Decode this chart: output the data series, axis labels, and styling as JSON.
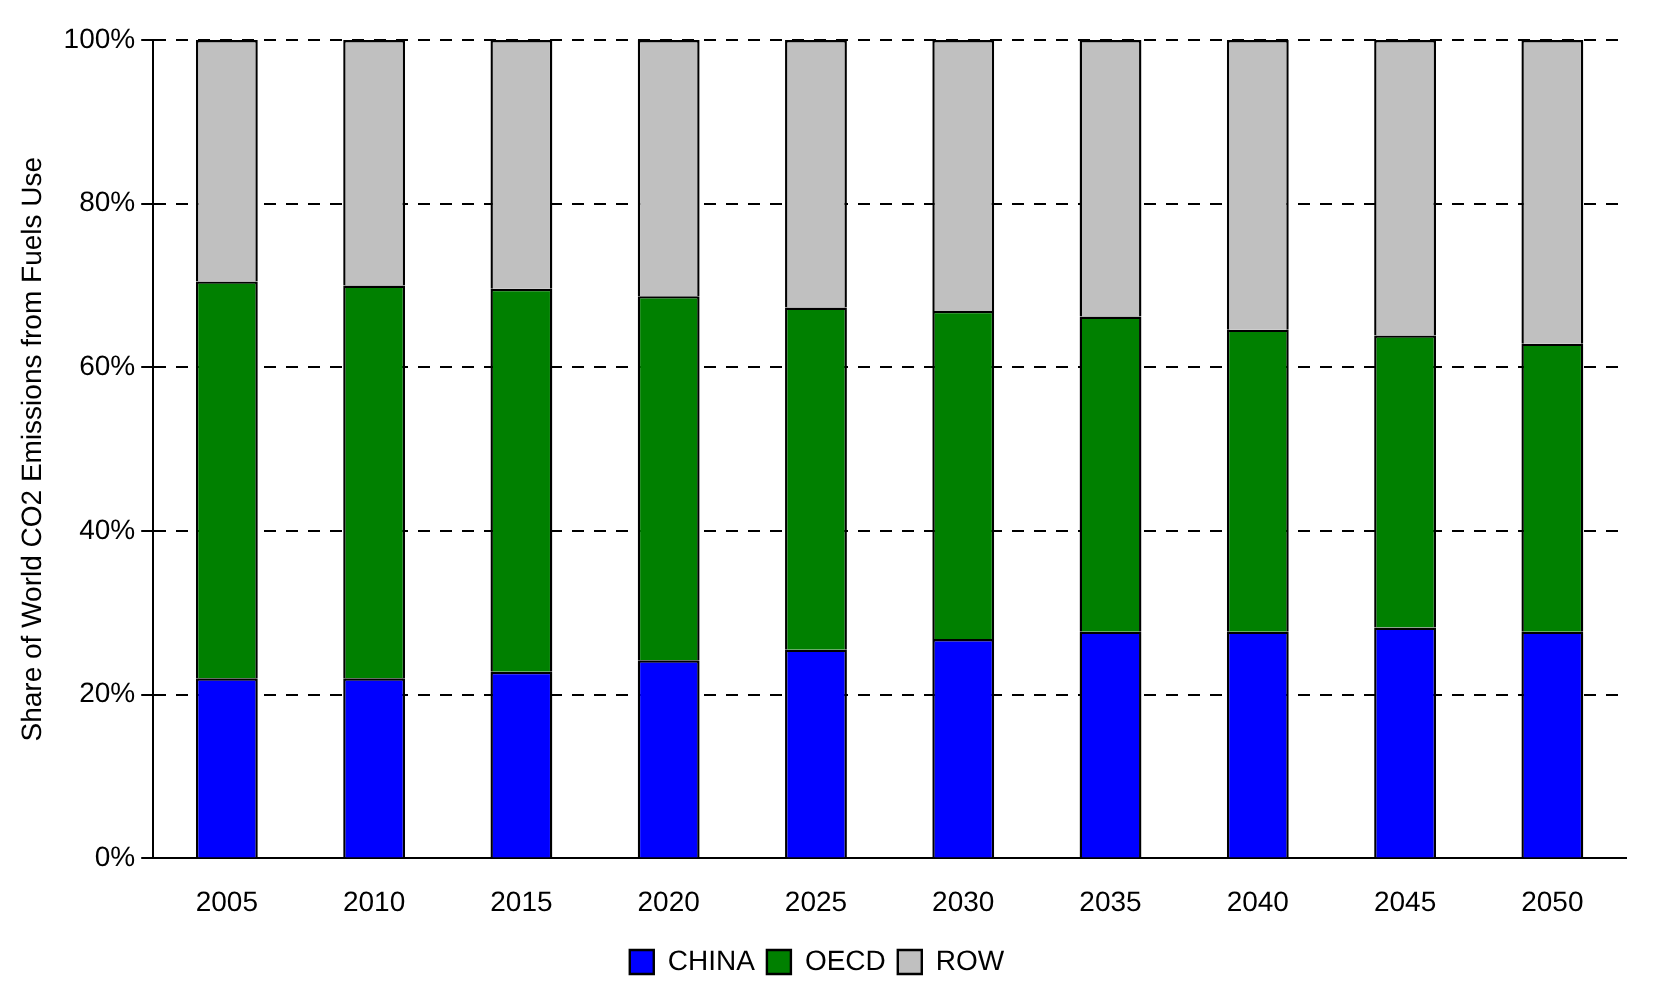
{
  "chart_data": {
    "type": "bar",
    "stacked": true,
    "ylabel": "Share of World CO2 Emissions from Fuels Use",
    "categories": [
      "2005",
      "2010",
      "2015",
      "2020",
      "2025",
      "2030",
      "2035",
      "2040",
      "2045",
      "2050"
    ],
    "series": [
      {
        "name": "CHINA",
        "color": "#0000ff",
        "values": [
          22,
          22,
          22.8,
          24.2,
          25.5,
          26.8,
          27.7,
          27.7,
          28.2,
          27.7
        ]
      },
      {
        "name": "OECD",
        "color": "#008000",
        "values": [
          48.5,
          48,
          46.8,
          44.5,
          41.8,
          40.1,
          38.5,
          36.9,
          35.7,
          35.2
        ]
      },
      {
        "name": "ROW",
        "color": "#c0c0c0",
        "values": [
          29.5,
          30,
          30.4,
          31.3,
          32.7,
          33.1,
          33.8,
          35.4,
          36.1,
          37.1
        ]
      }
    ],
    "ylim": [
      0,
      100
    ],
    "yticks": [
      {
        "value": 0,
        "label": "0%"
      },
      {
        "value": 20,
        "label": "20%"
      },
      {
        "value": 40,
        "label": "40%"
      },
      {
        "value": 60,
        "label": "60%"
      },
      {
        "value": 80,
        "label": "80%"
      },
      {
        "value": 100,
        "label": "100%"
      }
    ],
    "grid": "y",
    "legend": "bottom"
  }
}
